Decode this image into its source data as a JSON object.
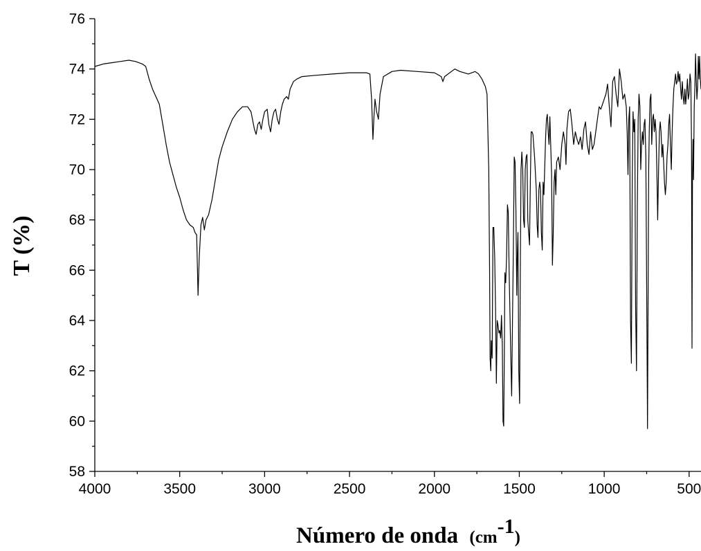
{
  "chart_data": {
    "type": "line",
    "title": "",
    "xlabel": "Número de onda",
    "xlabel_unit": "(cm",
    "xlabel_superscript": "-1",
    "xlabel_close": ")",
    "ylabel": "T (%)",
    "xlim": [
      4000,
      430
    ],
    "ylim": [
      58,
      76
    ],
    "x_reversed": true,
    "grid": false,
    "legend": "none",
    "line_color": "#000000",
    "x_ticks": [
      4000,
      3500,
      3000,
      2500,
      2000,
      1500,
      1000,
      500
    ],
    "y_ticks": [
      58,
      60,
      62,
      64,
      66,
      68,
      70,
      72,
      74,
      76
    ],
    "series": [
      {
        "points": [
          [
            4000,
            74.1
          ],
          [
            3950,
            74.2
          ],
          [
            3900,
            74.25
          ],
          [
            3850,
            74.3
          ],
          [
            3800,
            74.35
          ],
          [
            3760,
            74.3
          ],
          [
            3720,
            74.2
          ],
          [
            3700,
            74.1
          ],
          [
            3680,
            73.6
          ],
          [
            3660,
            73.2
          ],
          [
            3640,
            72.9
          ],
          [
            3620,
            72.6
          ],
          [
            3600,
            71.8
          ],
          [
            3580,
            71.0
          ],
          [
            3560,
            70.3
          ],
          [
            3540,
            69.8
          ],
          [
            3520,
            69.3
          ],
          [
            3500,
            68.9
          ],
          [
            3480,
            68.4
          ],
          [
            3460,
            68.0
          ],
          [
            3440,
            67.8
          ],
          [
            3420,
            67.7
          ],
          [
            3410,
            67.5
          ],
          [
            3400,
            67.4
          ],
          [
            3392,
            65.0
          ],
          [
            3385,
            66.5
          ],
          [
            3375,
            67.8
          ],
          [
            3365,
            68.1
          ],
          [
            3355,
            67.6
          ],
          [
            3345,
            68.0
          ],
          [
            3330,
            68.2
          ],
          [
            3310,
            68.8
          ],
          [
            3290,
            69.6
          ],
          [
            3270,
            70.4
          ],
          [
            3250,
            70.9
          ],
          [
            3220,
            71.5
          ],
          [
            3190,
            72.0
          ],
          [
            3160,
            72.3
          ],
          [
            3130,
            72.5
          ],
          [
            3100,
            72.5
          ],
          [
            3080,
            72.3
          ],
          [
            3060,
            71.6
          ],
          [
            3050,
            71.4
          ],
          [
            3040,
            71.8
          ],
          [
            3030,
            71.9
          ],
          [
            3020,
            71.6
          ],
          [
            3010,
            72.0
          ],
          [
            3000,
            72.3
          ],
          [
            2985,
            72.4
          ],
          [
            2975,
            71.8
          ],
          [
            2965,
            71.5
          ],
          [
            2955,
            72.0
          ],
          [
            2945,
            72.3
          ],
          [
            2935,
            72.4
          ],
          [
            2925,
            72.0
          ],
          [
            2915,
            71.8
          ],
          [
            2905,
            72.3
          ],
          [
            2895,
            72.6
          ],
          [
            2885,
            72.8
          ],
          [
            2870,
            72.9
          ],
          [
            2860,
            72.8
          ],
          [
            2850,
            73.2
          ],
          [
            2830,
            73.5
          ],
          [
            2810,
            73.6
          ],
          [
            2780,
            73.7
          ],
          [
            2700,
            73.75
          ],
          [
            2600,
            73.8
          ],
          [
            2500,
            73.85
          ],
          [
            2400,
            73.85
          ],
          [
            2380,
            73.8
          ],
          [
            2370,
            72.8
          ],
          [
            2362,
            71.2
          ],
          [
            2355,
            72.2
          ],
          [
            2350,
            72.8
          ],
          [
            2340,
            72.3
          ],
          [
            2330,
            72.0
          ],
          [
            2320,
            73.0
          ],
          [
            2300,
            73.7
          ],
          [
            2250,
            73.9
          ],
          [
            2200,
            73.95
          ],
          [
            2100,
            73.9
          ],
          [
            2000,
            73.85
          ],
          [
            1960,
            73.7
          ],
          [
            1950,
            73.5
          ],
          [
            1940,
            73.7
          ],
          [
            1900,
            73.9
          ],
          [
            1880,
            74.0
          ],
          [
            1850,
            73.9
          ],
          [
            1800,
            73.8
          ],
          [
            1760,
            73.9
          ],
          [
            1740,
            73.8
          ],
          [
            1720,
            73.6
          ],
          [
            1700,
            73.3
          ],
          [
            1690,
            73.0
          ],
          [
            1680,
            70.0
          ],
          [
            1675,
            66.0
          ],
          [
            1672,
            62.5
          ],
          [
            1668,
            62.0
          ],
          [
            1665,
            63.2
          ],
          [
            1660,
            62.5
          ],
          [
            1655,
            67.7
          ],
          [
            1650,
            67.7
          ],
          [
            1645,
            66.5
          ],
          [
            1640,
            64.5
          ],
          [
            1635,
            61.5
          ],
          [
            1630,
            64.0
          ],
          [
            1625,
            63.8
          ],
          [
            1620,
            63.5
          ],
          [
            1615,
            63.6
          ],
          [
            1610,
            63.3
          ],
          [
            1605,
            64.2
          ],
          [
            1600,
            63.0
          ],
          [
            1596,
            60.0
          ],
          [
            1592,
            59.8
          ],
          [
            1588,
            63.0
          ],
          [
            1585,
            65.9
          ],
          [
            1580,
            65.5
          ],
          [
            1575,
            66.5
          ],
          [
            1570,
            68.6
          ],
          [
            1565,
            68.3
          ],
          [
            1560,
            66.0
          ],
          [
            1550,
            62.5
          ],
          [
            1545,
            61.0
          ],
          [
            1540,
            64.0
          ],
          [
            1535,
            67.0
          ],
          [
            1530,
            70.5
          ],
          [
            1525,
            70.3
          ],
          [
            1520,
            68.5
          ],
          [
            1515,
            65.0
          ],
          [
            1512,
            66.5
          ],
          [
            1508,
            67.5
          ],
          [
            1503,
            62.0
          ],
          [
            1498,
            60.7
          ],
          [
            1495,
            65.0
          ],
          [
            1490,
            70.0
          ],
          [
            1485,
            70.7
          ],
          [
            1480,
            70.0
          ],
          [
            1475,
            68.0
          ],
          [
            1470,
            67.7
          ],
          [
            1465,
            70.0
          ],
          [
            1460,
            70.5
          ],
          [
            1455,
            70.6
          ],
          [
            1450,
            68.0
          ],
          [
            1445,
            67.5
          ],
          [
            1440,
            67.0
          ],
          [
            1435,
            69.5
          ],
          [
            1430,
            71.5
          ],
          [
            1425,
            71.5
          ],
          [
            1420,
            71.4
          ],
          [
            1410,
            70.5
          ],
          [
            1400,
            69.2
          ],
          [
            1395,
            67.8
          ],
          [
            1390,
            67.3
          ],
          [
            1385,
            69.2
          ],
          [
            1380,
            69.5
          ],
          [
            1375,
            69.2
          ],
          [
            1370,
            67.5
          ],
          [
            1365,
            66.8
          ],
          [
            1360,
            69.5
          ],
          [
            1355,
            69.0
          ],
          [
            1350,
            70.2
          ],
          [
            1345,
            71.3
          ],
          [
            1340,
            72.0
          ],
          [
            1335,
            72.2
          ],
          [
            1330,
            71.5
          ],
          [
            1325,
            71.0
          ],
          [
            1320,
            72.1
          ],
          [
            1315,
            71.0
          ],
          [
            1310,
            69.8
          ],
          [
            1305,
            66.2
          ],
          [
            1300,
            67.5
          ],
          [
            1295,
            69.5
          ],
          [
            1290,
            70.0
          ],
          [
            1285,
            69.0
          ],
          [
            1280,
            70.3
          ],
          [
            1270,
            70.5
          ],
          [
            1260,
            70.0
          ],
          [
            1250,
            71.0
          ],
          [
            1240,
            71.5
          ],
          [
            1230,
            71.0
          ],
          [
            1225,
            70.2
          ],
          [
            1220,
            71.6
          ],
          [
            1210,
            72.3
          ],
          [
            1200,
            72.4
          ],
          [
            1190,
            71.8
          ],
          [
            1180,
            71.0
          ],
          [
            1170,
            71.5
          ],
          [
            1160,
            71.2
          ],
          [
            1150,
            71.0
          ],
          [
            1140,
            71.3
          ],
          [
            1130,
            70.8
          ],
          [
            1120,
            71.6
          ],
          [
            1110,
            71.9
          ],
          [
            1100,
            71.0
          ],
          [
            1090,
            70.6
          ],
          [
            1080,
            71.5
          ],
          [
            1070,
            70.8
          ],
          [
            1060,
            71.0
          ],
          [
            1050,
            71.5
          ],
          [
            1040,
            72.0
          ],
          [
            1030,
            72.5
          ],
          [
            1020,
            72.4
          ],
          [
            1010,
            72.6
          ],
          [
            1000,
            72.8
          ],
          [
            990,
            73.0
          ],
          [
            980,
            73.4
          ],
          [
            970,
            72.5
          ],
          [
            960,
            71.7
          ],
          [
            950,
            73.5
          ],
          [
            940,
            73.7
          ],
          [
            930,
            73.0
          ],
          [
            920,
            72.5
          ],
          [
            910,
            74.0
          ],
          [
            900,
            73.5
          ],
          [
            890,
            72.8
          ],
          [
            880,
            73.0
          ],
          [
            870,
            72.5
          ],
          [
            865,
            71.5
          ],
          [
            860,
            69.8
          ],
          [
            855,
            72.0
          ],
          [
            850,
            72.5
          ],
          [
            845,
            64.0
          ],
          [
            840,
            62.3
          ],
          [
            835,
            69.5
          ],
          [
            830,
            72.3
          ],
          [
            825,
            71.5
          ],
          [
            820,
            72.0
          ],
          [
            815,
            64.5
          ],
          [
            810,
            62.0
          ],
          [
            805,
            68.5
          ],
          [
            800,
            72.0
          ],
          [
            795,
            73.0
          ],
          [
            790,
            72.5
          ],
          [
            785,
            70.0
          ],
          [
            780,
            71.0
          ],
          [
            775,
            71.5
          ],
          [
            770,
            71.0
          ],
          [
            765,
            71.8
          ],
          [
            760,
            72.0
          ],
          [
            755,
            70.5
          ],
          [
            748,
            63.0
          ],
          [
            745,
            59.7
          ],
          [
            742,
            64.0
          ],
          [
            738,
            70.0
          ],
          [
            735,
            71.5
          ],
          [
            730,
            72.8
          ],
          [
            725,
            73.0
          ],
          [
            720,
            71.0
          ],
          [
            715,
            72.0
          ],
          [
            710,
            72.2
          ],
          [
            705,
            71.5
          ],
          [
            700,
            72.0
          ],
          [
            695,
            71.5
          ],
          [
            690,
            70.0
          ],
          [
            685,
            68.0
          ],
          [
            680,
            70.0
          ],
          [
            675,
            71.5
          ],
          [
            670,
            71.9
          ],
          [
            665,
            71.5
          ],
          [
            660,
            70.5
          ],
          [
            655,
            71.0
          ],
          [
            650,
            70.3
          ],
          [
            645,
            69.5
          ],
          [
            640,
            69.0
          ],
          [
            635,
            69.5
          ],
          [
            630,
            70.5
          ],
          [
            625,
            71.0
          ],
          [
            620,
            71.8
          ],
          [
            615,
            72.2
          ],
          [
            610,
            71.0
          ],
          [
            605,
            70.0
          ],
          [
            600,
            71.5
          ],
          [
            595,
            72.5
          ],
          [
            590,
            73.2
          ],
          [
            585,
            73.5
          ],
          [
            580,
            73.8
          ],
          [
            575,
            73.4
          ],
          [
            570,
            73.5
          ],
          [
            565,
            73.9
          ],
          [
            560,
            73.5
          ],
          [
            555,
            73.8
          ],
          [
            550,
            73.2
          ],
          [
            545,
            72.8
          ],
          [
            540,
            73.5
          ],
          [
            535,
            72.9
          ],
          [
            530,
            72.6
          ],
          [
            525,
            73.2
          ],
          [
            520,
            72.6
          ],
          [
            515,
            73.0
          ],
          [
            510,
            73.6
          ],
          [
            505,
            72.8
          ],
          [
            500,
            73.0
          ],
          [
            495,
            73.8
          ],
          [
            490,
            73.5
          ],
          [
            486,
            71.0
          ],
          [
            483,
            62.9
          ],
          [
            480,
            69.8
          ],
          [
            477,
            71.2
          ],
          [
            474,
            69.6
          ],
          [
            470,
            72.5
          ],
          [
            466,
            73.3
          ],
          [
            462,
            74.6
          ],
          [
            458,
            73.6
          ],
          [
            454,
            72.8
          ],
          [
            450,
            73.3
          ],
          [
            446,
            74.5
          ],
          [
            442,
            73.6
          ],
          [
            438,
            74.5
          ],
          [
            434,
            73.6
          ],
          [
            430,
            73.2
          ]
        ]
      }
    ]
  }
}
